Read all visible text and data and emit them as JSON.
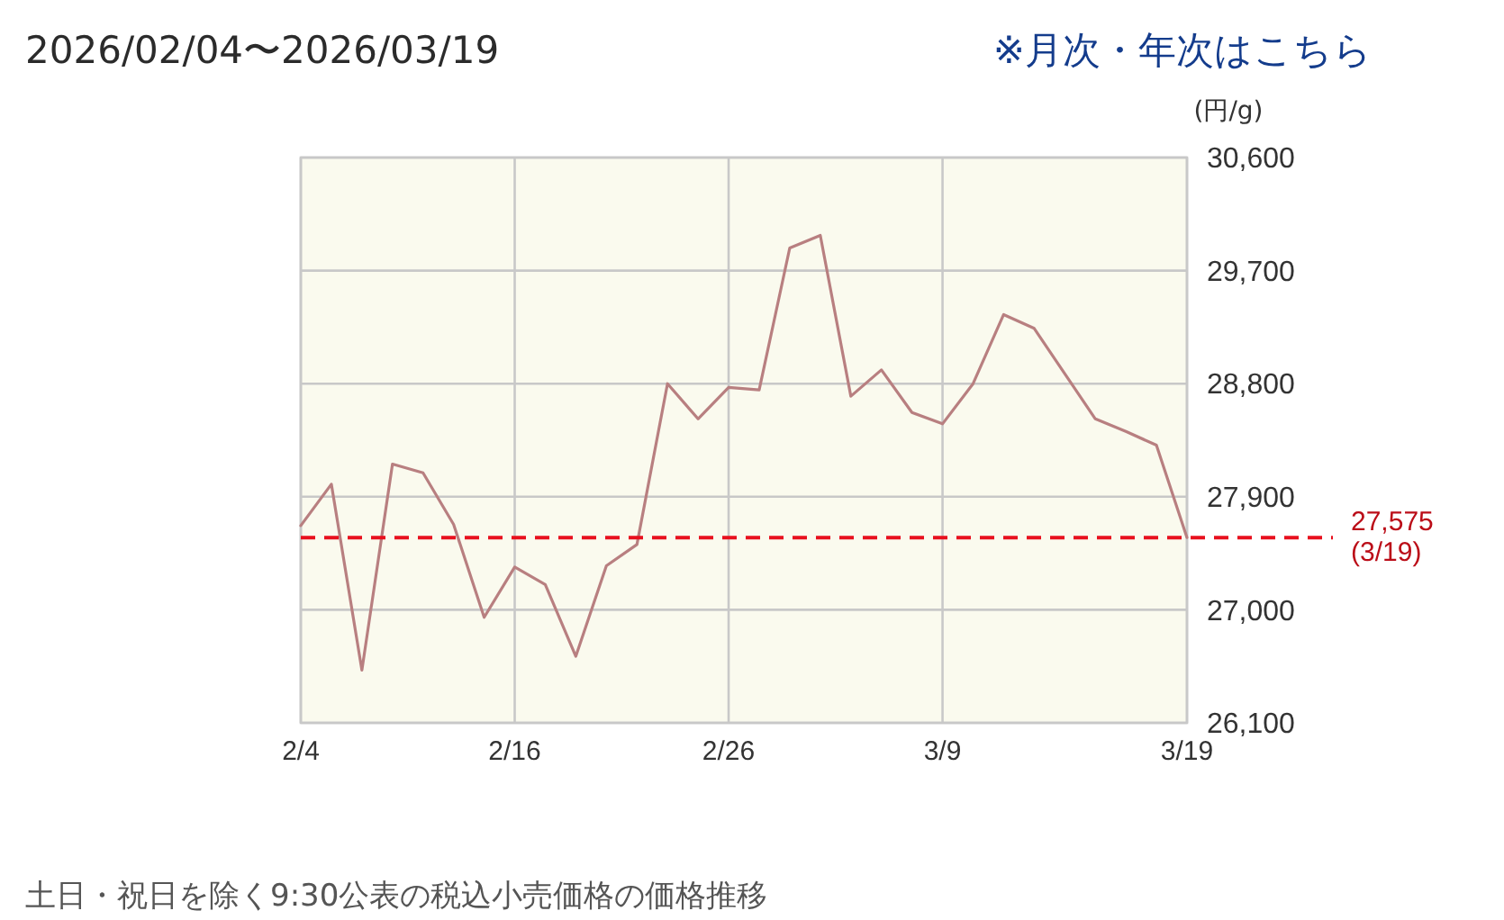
{
  "chart_data": {
    "type": "line",
    "title": "2026/02/04〜2026/03/19",
    "ylabel": "(円/g)",
    "annotations": [
      "※月次・年次はこちら",
      "土日・祝日を除く9:30公表の税込小売価格の価格推移"
    ],
    "categories": [
      "2/4",
      null,
      null,
      null,
      null,
      null,
      null,
      "2/16",
      null,
      null,
      null,
      null,
      null,
      null,
      "2/26",
      null,
      null,
      null,
      null,
      null,
      null,
      "3/9",
      null,
      null,
      null,
      null,
      null,
      null,
      null,
      "3/19"
    ],
    "values": [
      27670,
      28000,
      26520,
      28160,
      28090,
      27680,
      26940,
      27340,
      27200,
      26630,
      27350,
      27520,
      28800,
      28520,
      28770,
      28750,
      29880,
      29980,
      28700,
      28910,
      28570,
      28480,
      28800,
      29350,
      29240,
      28880,
      28520,
      28420,
      28310,
      27575
    ],
    "color": "#b87f80",
    "ylim": [
      26100,
      30600
    ],
    "yticks": [
      {
        "value": 26100,
        "label": "26,100"
      },
      {
        "value": 27000,
        "label": "27,000"
      },
      {
        "value": 27900,
        "label": "27,900"
      },
      {
        "value": 28800,
        "label": "28,800"
      },
      {
        "value": 29700,
        "label": "29,700"
      },
      {
        "value": 30600,
        "label": "30,600"
      }
    ],
    "grid": true,
    "ref_lines": [
      {
        "axis": "y",
        "value": 27575,
        "label": "27,575\n(3/19)",
        "color": "#e8101e",
        "line_style": "dashed"
      }
    ]
  }
}
